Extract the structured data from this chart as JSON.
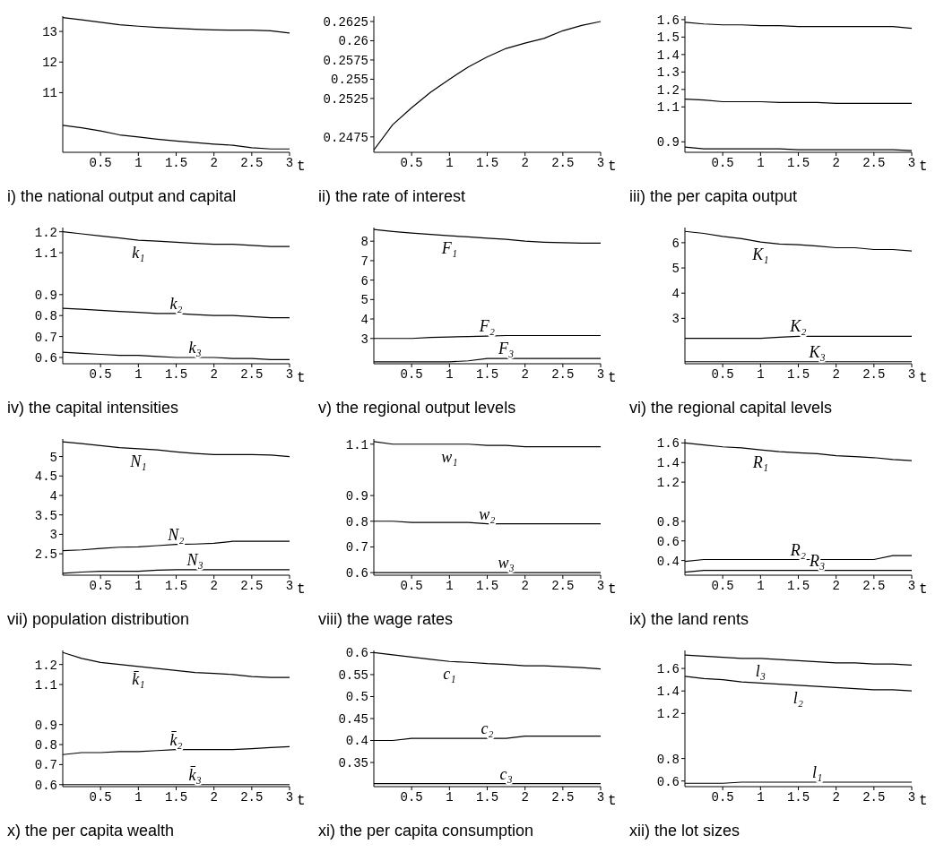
{
  "chart_data": [
    {
      "type": "line",
      "title": "i) the national output and capital",
      "xlabel": "t",
      "x": [
        0,
        0.25,
        0.5,
        0.75,
        1,
        1.25,
        1.5,
        1.75,
        2,
        2.25,
        2.5,
        2.75,
        3
      ],
      "xlim": [
        0,
        3
      ],
      "xticks": [
        0.5,
        1,
        1.5,
        2,
        2.5,
        3
      ],
      "ylim": [
        9.05,
        13.5
      ],
      "yticks": [
        11,
        12,
        13
      ],
      "series": [
        {
          "color": "#000000",
          "values": [
            13.45,
            13.38,
            13.3,
            13.22,
            13.17,
            13.13,
            13.1,
            13.07,
            13.05,
            13.04,
            13.04,
            13.02,
            12.95
          ]
        },
        {
          "color": "#000000",
          "values": [
            9.93,
            9.85,
            9.75,
            9.62,
            9.55,
            9.48,
            9.42,
            9.37,
            9.32,
            9.28,
            9.2,
            9.16,
            9.16
          ]
        }
      ]
    },
    {
      "type": "line",
      "title": "ii) the rate of interest",
      "xlabel": "t",
      "x": [
        0,
        0.25,
        0.5,
        0.75,
        1,
        1.25,
        1.5,
        1.75,
        2,
        2.25,
        2.5,
        2.75,
        3
      ],
      "xlim": [
        0,
        3
      ],
      "xticks": [
        0.5,
        1,
        1.5,
        2,
        2.5,
        3
      ],
      "ylim": [
        0.2455,
        0.2632
      ],
      "yticks": [
        0.2475,
        0.2525,
        0.255,
        0.2575,
        0.26,
        0.2625
      ],
      "series": [
        {
          "color": "#000000",
          "values": [
            0.2458,
            0.2491,
            0.2513,
            0.2533,
            0.255,
            0.2566,
            0.2579,
            0.259,
            0.2597,
            0.2603,
            0.2613,
            0.262,
            0.2625
          ]
        }
      ]
    },
    {
      "type": "line",
      "title": "iii) the per capita output",
      "xlabel": "t",
      "x": [
        0,
        0.25,
        0.5,
        0.75,
        1,
        1.25,
        1.5,
        1.75,
        2,
        2.25,
        2.5,
        2.75,
        3
      ],
      "xlim": [
        0,
        3
      ],
      "xticks": [
        0.5,
        1,
        1.5,
        2,
        2.5,
        3
      ],
      "ylim": [
        0.84,
        1.62
      ],
      "yticks": [
        0.9,
        1.1,
        1.2,
        1.3,
        1.4,
        1.5,
        1.6
      ],
      "series": [
        {
          "color": "#000000",
          "values": [
            1.585,
            1.575,
            1.57,
            1.57,
            1.565,
            1.565,
            1.56,
            1.56,
            1.56,
            1.56,
            1.56,
            1.56,
            1.55
          ]
        },
        {
          "color": "#000000",
          "values": [
            1.145,
            1.14,
            1.13,
            1.13,
            1.13,
            1.125,
            1.125,
            1.125,
            1.12,
            1.12,
            1.12,
            1.12,
            1.12
          ]
        },
        {
          "color": "#000000",
          "values": [
            0.87,
            0.86,
            0.86,
            0.86,
            0.86,
            0.86,
            0.855,
            0.855,
            0.855,
            0.855,
            0.855,
            0.855,
            0.85
          ]
        }
      ]
    },
    {
      "type": "line",
      "title": "iv) the capital intensities",
      "xlabel": "t",
      "x": [
        0,
        0.25,
        0.5,
        0.75,
        1,
        1.25,
        1.5,
        1.75,
        2,
        2.25,
        2.5,
        2.75,
        3
      ],
      "xlim": [
        0,
        3
      ],
      "xticks": [
        0.5,
        1,
        1.5,
        2,
        2.5,
        3
      ],
      "ylim": [
        0.57,
        1.22
      ],
      "yticks": [
        0.6,
        0.7,
        0.8,
        0.9,
        1.1,
        1.2
      ],
      "series": [
        {
          "name": "k₁",
          "color": "#000000",
          "values": [
            1.2,
            1.19,
            1.18,
            1.17,
            1.16,
            1.155,
            1.15,
            1.145,
            1.14,
            1.14,
            1.135,
            1.13,
            1.13
          ]
        },
        {
          "name": "k₂",
          "color": "#000000",
          "values": [
            0.835,
            0.83,
            0.825,
            0.82,
            0.815,
            0.81,
            0.81,
            0.805,
            0.8,
            0.8,
            0.795,
            0.79,
            0.79
          ]
        },
        {
          "name": "k₃",
          "color": "#000000",
          "values": [
            0.625,
            0.62,
            0.615,
            0.61,
            0.61,
            0.605,
            0.6,
            0.6,
            0.6,
            0.595,
            0.595,
            0.59,
            0.59
          ]
        }
      ]
    },
    {
      "type": "line",
      "title": "v) the regional output levels",
      "xlabel": "t",
      "x": [
        0,
        0.25,
        0.5,
        0.75,
        1,
        1.25,
        1.5,
        1.75,
        2,
        2.25,
        2.5,
        2.75,
        3
      ],
      "xlim": [
        0,
        3
      ],
      "xticks": [
        0.5,
        1,
        1.5,
        2,
        2.5,
        3
      ],
      "ylim": [
        1.7,
        8.7
      ],
      "yticks": [
        3,
        4,
        5,
        6,
        7,
        8
      ],
      "series": [
        {
          "name": "F₁",
          "color": "#000000",
          "values": [
            8.6,
            8.5,
            8.42,
            8.35,
            8.28,
            8.22,
            8.15,
            8.1,
            8.0,
            7.95,
            7.92,
            7.9,
            7.9
          ]
        },
        {
          "name": "F₂",
          "color": "#000000",
          "values": [
            3.0,
            3.0,
            3.0,
            3.05,
            3.08,
            3.1,
            3.12,
            3.15,
            3.15,
            3.15,
            3.15,
            3.15,
            3.15
          ]
        },
        {
          "name": "F₃",
          "color": "#000000",
          "values": [
            1.8,
            1.8,
            1.8,
            1.8,
            1.8,
            1.85,
            1.97,
            1.97,
            1.97,
            1.97,
            1.97,
            1.97,
            1.97
          ]
        }
      ]
    },
    {
      "type": "line",
      "title": "vi) the regional capital levels",
      "xlabel": "t",
      "x": [
        0,
        0.25,
        0.5,
        0.75,
        1,
        1.25,
        1.5,
        1.75,
        2,
        2.25,
        2.5,
        2.75,
        3
      ],
      "xlim": [
        0,
        3
      ],
      "xticks": [
        0.5,
        1,
        1.5,
        2,
        2.5,
        3
      ],
      "ylim": [
        1.2,
        6.6
      ],
      "yticks": [
        3,
        4,
        5,
        6
      ],
      "series": [
        {
          "name": "K₁",
          "color": "#000000",
          "values": [
            6.45,
            6.37,
            6.25,
            6.16,
            6.03,
            5.95,
            5.92,
            5.87,
            5.8,
            5.8,
            5.73,
            5.73,
            5.67
          ]
        },
        {
          "name": "K₂",
          "color": "#000000",
          "values": [
            2.21,
            2.21,
            2.21,
            2.21,
            2.21,
            2.25,
            2.29,
            2.29,
            2.29,
            2.29,
            2.29,
            2.29,
            2.29
          ]
        },
        {
          "name": "K₃",
          "color": "#000000",
          "values": [
            1.28,
            1.28,
            1.28,
            1.28,
            1.28,
            1.28,
            1.28,
            1.28,
            1.28,
            1.28,
            1.28,
            1.28,
            1.28
          ]
        }
      ]
    },
    {
      "type": "line",
      "title": "vii) population distribution",
      "xlabel": "t",
      "x": [
        0,
        0.25,
        0.5,
        0.75,
        1,
        1.25,
        1.5,
        1.75,
        2,
        2.25,
        2.5,
        2.75,
        3
      ],
      "xlim": [
        0,
        3
      ],
      "xticks": [
        0.5,
        1,
        1.5,
        2,
        2.5,
        3
      ],
      "ylim": [
        1.95,
        5.45
      ],
      "yticks": [
        2.5,
        3,
        3.5,
        4,
        4.5,
        5
      ],
      "series": [
        {
          "name": "N₁",
          "color": "#000000",
          "values": [
            5.38,
            5.33,
            5.28,
            5.23,
            5.2,
            5.17,
            5.12,
            5.08,
            5.05,
            5.05,
            5.05,
            5.04,
            5.0
          ]
        },
        {
          "name": "N₂",
          "color": "#000000",
          "values": [
            2.58,
            2.6,
            2.64,
            2.67,
            2.68,
            2.71,
            2.74,
            2.75,
            2.77,
            2.82,
            2.82,
            2.82,
            2.82
          ]
        },
        {
          "name": "N₃",
          "color": "#000000",
          "values": [
            2.0,
            2.03,
            2.05,
            2.05,
            2.05,
            2.08,
            2.09,
            2.09,
            2.09,
            2.09,
            2.09,
            2.09,
            2.09
          ]
        }
      ]
    },
    {
      "type": "line",
      "title": "viii) the wage rates",
      "xlabel": "t",
      "x": [
        0,
        0.25,
        0.5,
        0.75,
        1,
        1.25,
        1.5,
        1.75,
        2,
        2.25,
        2.5,
        2.75,
        3
      ],
      "xlim": [
        0,
        3
      ],
      "xticks": [
        0.5,
        1,
        1.5,
        2,
        2.5,
        3
      ],
      "ylim": [
        0.59,
        1.12
      ],
      "yticks": [
        0.6,
        0.7,
        0.8,
        0.9,
        1.1
      ],
      "series": [
        {
          "name": "w₁",
          "color": "#000000",
          "values": [
            1.11,
            1.1,
            1.1,
            1.1,
            1.1,
            1.1,
            1.095,
            1.095,
            1.09,
            1.09,
            1.09,
            1.09,
            1.09
          ]
        },
        {
          "name": "w₂",
          "color": "#000000",
          "values": [
            0.8,
            0.8,
            0.795,
            0.795,
            0.795,
            0.795,
            0.79,
            0.79,
            0.79,
            0.79,
            0.79,
            0.79,
            0.79
          ]
        },
        {
          "name": "w₃",
          "color": "#000000",
          "values": [
            0.6,
            0.6,
            0.6,
            0.6,
            0.6,
            0.6,
            0.6,
            0.6,
            0.6,
            0.6,
            0.6,
            0.6,
            0.6
          ]
        }
      ]
    },
    {
      "type": "line",
      "title": "ix) the land rents",
      "xlabel": "t",
      "x": [
        0,
        0.25,
        0.5,
        0.75,
        1,
        1.25,
        1.5,
        1.75,
        2,
        2.25,
        2.5,
        2.75,
        3
      ],
      "xlim": [
        0,
        3
      ],
      "xticks": [
        0.5,
        1,
        1.5,
        2,
        2.5,
        3
      ],
      "ylim": [
        0.25,
        1.64
      ],
      "yticks": [
        0.4,
        0.6,
        0.8,
        1.2,
        1.4,
        1.6
      ],
      "series": [
        {
          "name": "R₁",
          "color": "#000000",
          "values": [
            1.6,
            1.58,
            1.56,
            1.55,
            1.53,
            1.51,
            1.5,
            1.49,
            1.47,
            1.46,
            1.45,
            1.43,
            1.42
          ]
        },
        {
          "name": "R₂",
          "color": "#000000",
          "values": [
            0.39,
            0.41,
            0.41,
            0.41,
            0.41,
            0.41,
            0.41,
            0.41,
            0.41,
            0.41,
            0.41,
            0.45,
            0.45
          ]
        },
        {
          "name": "R₃",
          "color": "#000000",
          "values": [
            0.28,
            0.3,
            0.3,
            0.3,
            0.3,
            0.3,
            0.3,
            0.3,
            0.3,
            0.3,
            0.3,
            0.3,
            0.3
          ]
        }
      ]
    },
    {
      "type": "line",
      "title": "x) the per capita wealth",
      "xlabel": "t",
      "x": [
        0,
        0.25,
        0.5,
        0.75,
        1,
        1.25,
        1.5,
        1.75,
        2,
        2.25,
        2.5,
        2.75,
        3
      ],
      "xlim": [
        0,
        3
      ],
      "xticks": [
        0.5,
        1,
        1.5,
        2,
        2.5,
        3
      ],
      "ylim": [
        0.59,
        1.27
      ],
      "yticks": [
        0.6,
        0.7,
        0.8,
        0.9,
        1.1,
        1.2
      ],
      "series": [
        {
          "name": "k̄₁",
          "color": "#000000",
          "values": [
            1.26,
            1.23,
            1.21,
            1.2,
            1.19,
            1.18,
            1.17,
            1.16,
            1.155,
            1.15,
            1.14,
            1.135,
            1.135
          ]
        },
        {
          "name": "k̄₂",
          "color": "#000000",
          "values": [
            0.75,
            0.76,
            0.76,
            0.765,
            0.765,
            0.77,
            0.775,
            0.775,
            0.775,
            0.775,
            0.78,
            0.785,
            0.79
          ]
        },
        {
          "name": "k̄₃",
          "color": "#000000",
          "values": [
            0.6,
            0.6,
            0.6,
            0.6,
            0.6,
            0.6,
            0.6,
            0.6,
            0.6,
            0.6,
            0.6,
            0.6,
            0.6
          ]
        }
      ]
    },
    {
      "type": "line",
      "title": "xi) the per capita consumption",
      "xlabel": "t",
      "x": [
        0,
        0.25,
        0.5,
        0.75,
        1,
        1.25,
        1.5,
        1.75,
        2,
        2.25,
        2.5,
        2.75,
        3
      ],
      "xlim": [
        0,
        3
      ],
      "xticks": [
        0.5,
        1,
        1.5,
        2,
        2.5,
        3
      ],
      "ylim": [
        0.295,
        0.605
      ],
      "yticks": [
        0.35,
        0.4,
        0.45,
        0.5,
        0.55,
        0.6
      ],
      "series": [
        {
          "name": "c₁",
          "color": "#000000",
          "values": [
            0.6,
            0.595,
            0.59,
            0.585,
            0.58,
            0.578,
            0.575,
            0.573,
            0.57,
            0.57,
            0.568,
            0.566,
            0.563
          ]
        },
        {
          "name": "c₂",
          "color": "#000000",
          "values": [
            0.4,
            0.4,
            0.405,
            0.405,
            0.405,
            0.405,
            0.405,
            0.405,
            0.41,
            0.41,
            0.41,
            0.41,
            0.41
          ]
        },
        {
          "name": "c₃",
          "color": "#000000",
          "values": [
            0.302,
            0.302,
            0.302,
            0.302,
            0.302,
            0.302,
            0.302,
            0.302,
            0.302,
            0.302,
            0.302,
            0.302,
            0.302
          ]
        }
      ]
    },
    {
      "type": "line",
      "title": "xii) the lot sizes",
      "xlabel": "t",
      "x": [
        0,
        0.25,
        0.5,
        0.75,
        1,
        1.25,
        1.5,
        1.75,
        2,
        2.25,
        2.5,
        2.75,
        3
      ],
      "xlim": [
        0,
        3
      ],
      "xticks": [
        0.5,
        1,
        1.5,
        2,
        2.5,
        3
      ],
      "ylim": [
        0.55,
        1.76
      ],
      "yticks": [
        0.6,
        0.8,
        1.2,
        1.4,
        1.6
      ],
      "series": [
        {
          "name": "l₃",
          "color": "#000000",
          "values": [
            1.72,
            1.71,
            1.7,
            1.69,
            1.69,
            1.68,
            1.67,
            1.66,
            1.65,
            1.65,
            1.64,
            1.64,
            1.63
          ]
        },
        {
          "name": "l₂",
          "color": "#000000",
          "values": [
            1.53,
            1.51,
            1.5,
            1.48,
            1.47,
            1.46,
            1.45,
            1.44,
            1.43,
            1.42,
            1.41,
            1.41,
            1.4
          ]
        },
        {
          "name": "l₁",
          "color": "#000000",
          "values": [
            0.58,
            0.58,
            0.58,
            0.59,
            0.59,
            0.59,
            0.59,
            0.59,
            0.59,
            0.59,
            0.59,
            0.59,
            0.59
          ]
        }
      ]
    }
  ]
}
